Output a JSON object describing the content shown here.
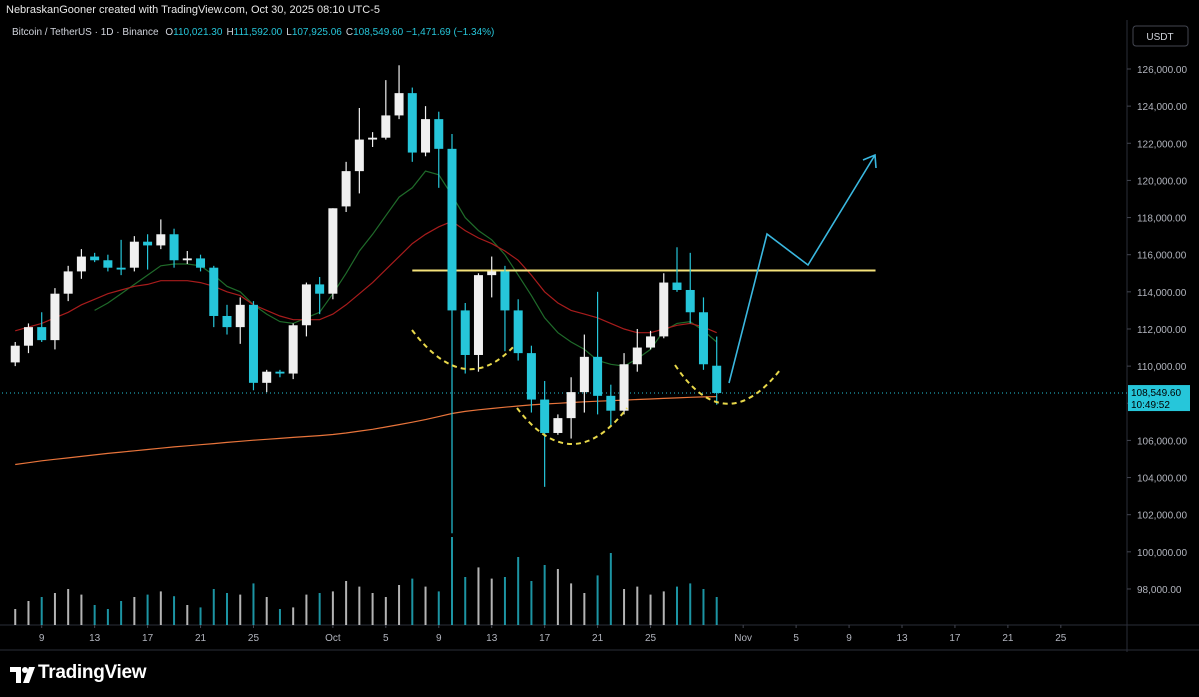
{
  "header": {
    "credit": "NebraskanGooner created with TradingView.com, Oct 30, 2025 08:10 UTC-5",
    "symbol": "Bitcoin / TetherUS · 1D · Binance",
    "ohlc": [
      {
        "key": "O",
        "value": "110,021.30"
      },
      {
        "key": "H",
        "value": "111,592.00"
      },
      {
        "key": "L",
        "value": "107,925.06"
      },
      {
        "key": "C",
        "value": "108,549.60"
      }
    ],
    "change": "−1,471.69 (−1.34%)"
  },
  "footer": {
    "brand": "TradingView"
  },
  "chart_data": {
    "type": "candlestick",
    "currency": "USDT",
    "x": [
      "2025-09-07",
      "2025-09-08",
      "2025-09-09",
      "2025-09-10",
      "2025-09-11",
      "2025-09-12",
      "2025-09-13",
      "2025-09-14",
      "2025-09-15",
      "2025-09-16",
      "2025-09-17",
      "2025-09-18",
      "2025-09-19",
      "2025-09-20",
      "2025-09-21",
      "2025-09-22",
      "2025-09-23",
      "2025-09-24",
      "2025-09-25",
      "2025-09-26",
      "2025-09-27",
      "2025-09-28",
      "2025-09-29",
      "2025-09-30",
      "2025-10-01",
      "2025-10-02",
      "2025-10-03",
      "2025-10-04",
      "2025-10-05",
      "2025-10-06",
      "2025-10-07",
      "2025-10-08",
      "2025-10-09",
      "2025-10-10",
      "2025-10-11",
      "2025-10-12",
      "2025-10-13",
      "2025-10-14",
      "2025-10-15",
      "2025-10-16",
      "2025-10-17",
      "2025-10-18",
      "2025-10-19",
      "2025-10-20",
      "2025-10-21",
      "2025-10-22",
      "2025-10-23",
      "2025-10-24",
      "2025-10-25",
      "2025-10-26",
      "2025-10-27",
      "2025-10-28",
      "2025-10-29",
      "2025-10-30"
    ],
    "open": [
      110200,
      111100,
      112100,
      111400,
      113900,
      115100,
      115900,
      115700,
      115300,
      115300,
      116700,
      116500,
      117100,
      115700,
      115800,
      115300,
      112700,
      112100,
      113300,
      109100,
      109700,
      109600,
      112200,
      114400,
      113900,
      118600,
      120500,
      122200,
      122300,
      123500,
      124700,
      121500,
      123300,
      121700,
      113000,
      110600,
      114900,
      115100,
      113000,
      110700,
      108200,
      106400,
      107200,
      108600,
      110500,
      108400,
      107600,
      110100,
      111000,
      111600,
      114500,
      114100,
      112900,
      110021.3
    ],
    "high": [
      111300,
      112300,
      112900,
      114200,
      115400,
      116300,
      116100,
      116000,
      116800,
      117000,
      117100,
      117900,
      117400,
      116200,
      116000,
      115400,
      113300,
      113700,
      113500,
      109800,
      109800,
      112300,
      114500,
      114800,
      118500,
      121000,
      123900,
      122600,
      125400,
      126200,
      125000,
      124000,
      123700,
      122500,
      113400,
      115000,
      115900,
      115400,
      113600,
      111100,
      109200,
      107400,
      109400,
      111700,
      114000,
      109000,
      110700,
      112000,
      111900,
      115000,
      116400,
      116100,
      113700,
      111592
    ],
    "low": [
      110000,
      110700,
      111300,
      110900,
      113500,
      114700,
      115600,
      115100,
      114900,
      115100,
      115200,
      116300,
      115300,
      115500,
      115100,
      112100,
      111700,
      111200,
      108700,
      108600,
      109400,
      109300,
      111600,
      112800,
      113600,
      118300,
      119300,
      121800,
      122200,
      123300,
      121000,
      121300,
      119600,
      101000,
      109600,
      109700,
      113700,
      110800,
      110300,
      107500,
      103500,
      106300,
      106100,
      107500,
      107400,
      106800,
      107400,
      109700,
      110900,
      111500,
      114000,
      112300,
      109800,
      107925.06
    ],
    "close": [
      111100,
      112100,
      111400,
      113900,
      115100,
      115900,
      115700,
      115300,
      115200,
      116700,
      116500,
      117100,
      115700,
      115800,
      115300,
      112700,
      112100,
      113300,
      109100,
      109700,
      109600,
      112200,
      114400,
      113900,
      118500,
      120500,
      122200,
      122300,
      123500,
      124700,
      121500,
      123300,
      121700,
      113000,
      110600,
      114900,
      115100,
      113000,
      110700,
      108200,
      106400,
      107200,
      108600,
      110500,
      108400,
      107600,
      110100,
      111000,
      111600,
      114500,
      114100,
      112900,
      110100,
      108549.6
    ],
    "volume": [
      20,
      30,
      35,
      40,
      45,
      38,
      25,
      20,
      30,
      35,
      38,
      42,
      36,
      25,
      22,
      45,
      40,
      38,
      52,
      35,
      20,
      22,
      38,
      40,
      42,
      55,
      48,
      40,
      35,
      50,
      58,
      48,
      42,
      110,
      60,
      72,
      58,
      60,
      85,
      55,
      75,
      70,
      52,
      40,
      62,
      90,
      45,
      48,
      38,
      42,
      48,
      52,
      45,
      35
    ],
    "series": [
      {
        "name": "EMA short",
        "color": "#1f6b2a",
        "values": [
          null,
          null,
          null,
          null,
          null,
          null,
          113000,
          113400,
          113900,
          114400,
          114900,
          115400,
          115500,
          115500,
          115400,
          114900,
          114300,
          114000,
          113300,
          112800,
          112400,
          112300,
          112600,
          112900,
          113900,
          115000,
          116200,
          117100,
          118100,
          119100,
          119600,
          120500,
          120300,
          119200,
          118000,
          117300,
          116800,
          116000,
          114900,
          113800,
          112600,
          111800,
          111300,
          110900,
          110300,
          110100,
          110000,
          110400,
          110900,
          111900,
          112300,
          112400,
          111900,
          111300
        ]
      },
      {
        "name": "EMA medium",
        "color": "#a81c1c",
        "values": [
          111900,
          112100,
          112300,
          112600,
          112900,
          113300,
          113600,
          113900,
          114100,
          114300,
          114400,
          114600,
          114600,
          114600,
          114500,
          114300,
          114000,
          113800,
          113300,
          113000,
          112700,
          112500,
          112500,
          112500,
          112800,
          113300,
          113900,
          114500,
          115200,
          115900,
          116600,
          117100,
          117500,
          117800,
          117300,
          116900,
          116600,
          116200,
          115700,
          114900,
          114000,
          113400,
          113000,
          112800,
          112600,
          112300,
          112000,
          111800,
          111800,
          112000,
          112200,
          112300,
          112100,
          111800
        ]
      },
      {
        "name": "EMA long",
        "color": "#e8743b",
        "values": [
          104700,
          104800,
          104900,
          104980,
          105060,
          105140,
          105220,
          105300,
          105370,
          105440,
          105510,
          105580,
          105650,
          105710,
          105770,
          105830,
          105890,
          105950,
          106010,
          106060,
          106110,
          106160,
          106210,
          106260,
          106320,
          106400,
          106500,
          106600,
          106720,
          106850,
          106980,
          107120,
          107280,
          107450,
          107560,
          107650,
          107720,
          107790,
          107850,
          107910,
          107960,
          108000,
          108040,
          108080,
          108110,
          108140,
          108170,
          108200,
          108230,
          108260,
          108290,
          108320,
          108340,
          108360
        ]
      }
    ],
    "up_color": "#f0f0f0",
    "down_color": "#26c6da",
    "horizontal_line": {
      "value": 115150,
      "from": "2025-10-07",
      "to": "2025-11-11",
      "color": "#f5e27a"
    },
    "last_price": 108549.6,
    "last_price_label": "108,549.60",
    "countdown": "10:49:52",
    "xlim": [
      "2025-09-06",
      "2025-11-30"
    ],
    "xticks": [
      {
        "value": "2025-09-09",
        "label": "9"
      },
      {
        "value": "2025-09-13",
        "label": "13"
      },
      {
        "value": "2025-09-17",
        "label": "17"
      },
      {
        "value": "2025-09-21",
        "label": "21"
      },
      {
        "value": "2025-09-25",
        "label": "25"
      },
      {
        "value": "2025-10-01",
        "label": "Oct"
      },
      {
        "value": "2025-10-05",
        "label": "5"
      },
      {
        "value": "2025-10-09",
        "label": "9"
      },
      {
        "value": "2025-10-13",
        "label": "13"
      },
      {
        "value": "2025-10-17",
        "label": "17"
      },
      {
        "value": "2025-10-21",
        "label": "21"
      },
      {
        "value": "2025-10-25",
        "label": "25"
      },
      {
        "value": "2025-11-01",
        "label": "Nov"
      },
      {
        "value": "2025-11-05",
        "label": "5"
      },
      {
        "value": "2025-11-09",
        "label": "9"
      },
      {
        "value": "2025-11-13",
        "label": "13"
      },
      {
        "value": "2025-11-17",
        "label": "17"
      },
      {
        "value": "2025-11-21",
        "label": "21"
      },
      {
        "value": "2025-11-25",
        "label": "25"
      }
    ],
    "ylim": [
      96060,
      128530
    ],
    "yticks": [
      {
        "value": 98000,
        "label": "98,000.00"
      },
      {
        "value": 100000,
        "label": "100,000.00"
      },
      {
        "value": 102000,
        "label": "102,000.00"
      },
      {
        "value": 104000,
        "label": "104,000.00"
      },
      {
        "value": 106000,
        "label": "106,000.00"
      },
      {
        "value": 108000,
        "label": "108,000.00"
      },
      {
        "value": 110000,
        "label": "110,000.00"
      },
      {
        "value": 112000,
        "label": "112,000.00"
      },
      {
        "value": 114000,
        "label": "114,000.00"
      },
      {
        "value": 116000,
        "label": "116,000.00"
      },
      {
        "value": 118000,
        "label": "118,000.00"
      },
      {
        "value": 120000,
        "label": "120,000.00"
      },
      {
        "value": 122000,
        "label": "122,000.00"
      },
      {
        "value": 124000,
        "label": "124,000.00"
      },
      {
        "value": 126000,
        "label": "126,000.00"
      }
    ],
    "grid": false
  }
}
